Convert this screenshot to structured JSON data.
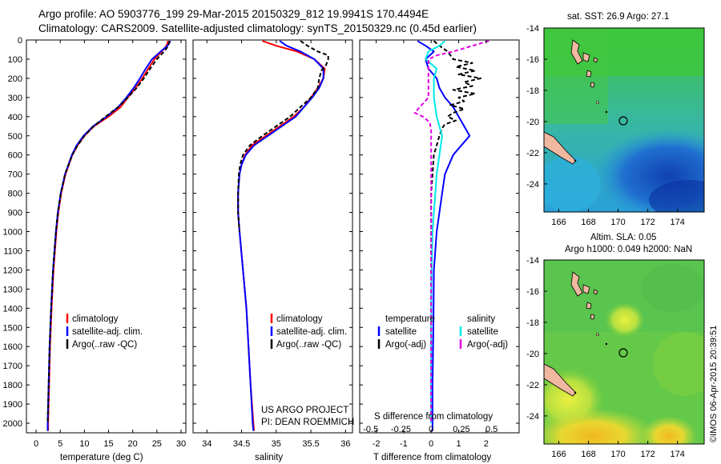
{
  "header": {
    "line1": "Argo profile: AO 5903776_199 29-Mar-2015 20150329_812 19.9941S 170.4494E",
    "line2": "Climatology: CARS2009. Satellite-adjusted climatology: synTS_20150329.nc (0.45d earlier)"
  },
  "depth_ticks": [
    "0",
    "100",
    "200",
    "300",
    "400",
    "500",
    "600",
    "700",
    "800",
    "900",
    "1000",
    "1100",
    "1200",
    "1300",
    "1400",
    "1500",
    "1600",
    "1700",
    "1800",
    "1900",
    "2000"
  ],
  "colors": {
    "climatology": "#ff0000",
    "satellite": "#0000ff",
    "argo": "#000000",
    "sat_salinity": "#00e8e8",
    "argo_salinity": "#e000e0"
  },
  "chart_data": [
    {
      "type": "line",
      "id": "temperature",
      "xlabel": "temperature (deg C)",
      "xlim": [
        -2,
        31
      ],
      "ylim": [
        0,
        2050
      ],
      "xticks": [
        "0",
        "5",
        "10",
        "15",
        "20",
        "25",
        "30"
      ],
      "xtick_values": [
        0,
        5,
        10,
        15,
        20,
        25,
        30
      ],
      "legend": [
        "climatology",
        "satellite-adj. clim.",
        "Argo(..raw -QC)"
      ],
      "series": [
        {
          "name": "climatology",
          "color": "#ff0000",
          "style": "solid",
          "depth": [
            5,
            30,
            60,
            100,
            150,
            200,
            250,
            300,
            350,
            400,
            450,
            500,
            550,
            600,
            650,
            700,
            800,
            900,
            1000,
            1200,
            1400,
            1600,
            1800,
            2000,
            2040
          ],
          "values": [
            27.3,
            27.0,
            26.0,
            24.5,
            23.2,
            22.0,
            20.6,
            19.0,
            17.5,
            15.0,
            12.0,
            10.0,
            8.6,
            7.5,
            6.8,
            6.1,
            5.2,
            4.6,
            4.2,
            3.6,
            3.2,
            2.9,
            2.7,
            2.5,
            2.5
          ]
        },
        {
          "name": "satellite-adj. clim.",
          "color": "#0000ff",
          "style": "solid",
          "depth": [
            5,
            30,
            60,
            100,
            150,
            200,
            250,
            300,
            350,
            400,
            450,
            500,
            550,
            600,
            650,
            700,
            800,
            900,
            1000,
            1200,
            1400,
            1600,
            1800,
            2000,
            2040
          ],
          "values": [
            27.8,
            27.2,
            25.8,
            24.0,
            22.7,
            21.5,
            20.2,
            18.7,
            17.0,
            14.6,
            11.8,
            9.8,
            8.4,
            7.4,
            6.7,
            6.0,
            5.1,
            4.5,
            4.1,
            3.5,
            3.1,
            2.8,
            2.6,
            2.4,
            2.4
          ]
        },
        {
          "name": "Argo(..raw -QC)",
          "color": "#000000",
          "style": "dashed",
          "depth": [
            5,
            30,
            60,
            100,
            150,
            200,
            250,
            300,
            350,
            400,
            450,
            500,
            550,
            600,
            650,
            700,
            800,
            900,
            1000,
            1200,
            1400,
            1600,
            1800,
            2000
          ],
          "values": [
            27.6,
            27.4,
            26.5,
            25.0,
            23.6,
            22.3,
            20.8,
            19.0,
            17.0,
            14.4,
            11.9,
            10.0,
            8.6,
            7.5,
            6.7,
            6.0,
            5.1,
            4.5,
            4.1,
            3.5,
            3.1,
            2.8,
            2.6,
            2.4
          ]
        }
      ]
    },
    {
      "type": "line",
      "id": "salinity",
      "xlabel": "salinity",
      "xlim": [
        33.8,
        36.1
      ],
      "ylim": [
        0,
        2050
      ],
      "xticks": [
        "34",
        "34.5",
        "35",
        "35.5",
        "36"
      ],
      "xtick_values": [
        34,
        34.5,
        35,
        35.5,
        36
      ],
      "legend": [
        "climatology",
        "satellite-adj. clim.",
        "Argo(..raw -QC)"
      ],
      "annotation": [
        "US ARGO PROJECT",
        "PI: DEAN ROEMMICH"
      ],
      "series": [
        {
          "name": "climatology",
          "color": "#ff0000",
          "style": "solid",
          "depth": [
            5,
            30,
            60,
            100,
            150,
            200,
            250,
            300,
            350,
            400,
            450,
            500,
            550,
            600,
            650,
            700,
            800,
            900,
            1000,
            1200,
            1400,
            1600,
            1800,
            2000,
            2040
          ],
          "values": [
            34.8,
            35.0,
            35.3,
            35.55,
            35.7,
            35.68,
            35.6,
            35.5,
            35.4,
            35.25,
            35.05,
            34.85,
            34.65,
            34.55,
            34.5,
            34.47,
            34.45,
            34.45,
            34.47,
            34.52,
            34.57,
            34.6,
            34.63,
            34.67,
            34.68
          ]
        },
        {
          "name": "satellite-adj. clim.",
          "color": "#0000ff",
          "style": "solid",
          "depth": [
            5,
            30,
            60,
            100,
            150,
            200,
            250,
            300,
            350,
            400,
            450,
            500,
            550,
            600,
            650,
            700,
            800,
            900,
            1000,
            1200,
            1400,
            1600,
            1800,
            2000,
            2040
          ],
          "values": [
            35.05,
            35.15,
            35.35,
            35.55,
            35.68,
            35.68,
            35.62,
            35.52,
            35.4,
            35.28,
            35.08,
            34.88,
            34.68,
            34.56,
            34.5,
            34.47,
            34.45,
            34.45,
            34.47,
            34.52,
            34.57,
            34.6,
            34.63,
            34.66,
            34.67
          ]
        },
        {
          "name": "Argo(..raw -QC)",
          "color": "#000000",
          "style": "dashed",
          "depth": [
            5,
            30,
            60,
            80,
            100,
            130,
            160,
            200,
            250,
            300,
            350,
            400,
            450,
            500,
            550,
            600,
            650,
            700,
            800,
            900,
            1000
          ],
          "values": [
            35.35,
            35.45,
            35.6,
            35.75,
            35.75,
            35.72,
            35.65,
            35.62,
            35.6,
            35.5,
            35.35,
            35.2,
            35.0,
            34.8,
            34.62,
            34.52,
            34.48,
            34.46,
            34.45,
            34.45,
            34.47
          ]
        }
      ]
    },
    {
      "type": "line",
      "id": "difference",
      "xlabel": "T difference from climatology",
      "xlabel_top": "S difference from climatology",
      "xlim": [
        -2.6,
        3.2
      ],
      "ylim": [
        0,
        2050
      ],
      "xticks": [
        "-2",
        "-1",
        "0",
        "1",
        "2"
      ],
      "xtick_values": [
        -2,
        -1,
        0,
        1,
        2
      ],
      "sticks": [
        "-0.5",
        "-0.25",
        "0",
        "0.25",
        "0.5"
      ],
      "legend_headings": [
        "temperature",
        "salinity"
      ],
      "legend": [
        "satellite",
        "Argo(-adj)",
        "satellite",
        "Argo(-adj)"
      ],
      "series": [
        {
          "name": "temperature satellite",
          "color": "#0000ff",
          "style": "solid",
          "depth": [
            5,
            30,
            60,
            100,
            150,
            200,
            250,
            300,
            350,
            400,
            450,
            500,
            550,
            600,
            700,
            800,
            900,
            1000,
            1200,
            1500,
            1800,
            2000,
            2040
          ],
          "values": [
            -0.5,
            -0.2,
            0.1,
            -0.2,
            -0.1,
            0.2,
            0.3,
            0.5,
            0.8,
            1.0,
            1.2,
            1.4,
            1.1,
            0.8,
            0.5,
            0.4,
            0.3,
            0.2,
            0.1,
            0.08,
            0.05,
            0.05,
            0.05
          ]
        },
        {
          "name": "temperature Argo(-adj)",
          "color": "#000000",
          "style": "dashed",
          "depth": [
            5,
            30,
            60,
            100,
            120,
            140,
            160,
            180,
            200,
            220,
            240,
            260,
            280,
            300,
            320,
            340,
            360,
            380,
            400,
            420,
            440,
            460,
            500,
            550,
            600,
            700,
            800,
            900,
            1000,
            1200,
            1500,
            1800,
            2000
          ],
          "values": [
            0.1,
            0.3,
            0.6,
            0.8,
            1.5,
            0.9,
            1.6,
            1.0,
            1.8,
            1.2,
            1.5,
            0.8,
            1.6,
            1.0,
            1.2,
            0.7,
            1.2,
            0.8,
            0.6,
            0.9,
            0.5,
            0.4,
            0.3,
            0.2,
            0.1,
            0.05,
            0.0,
            0.0,
            0.0,
            0.0,
            0.0,
            0.0,
            0.0
          ]
        },
        {
          "name": "salinity satellite",
          "color": "#00e8e8",
          "style": "solid",
          "depth": [
            5,
            30,
            60,
            100,
            150,
            200,
            300,
            400,
            500,
            600,
            700,
            800,
            900,
            1000,
            1200,
            1500,
            1800,
            2000
          ],
          "values": [
            0.5,
            0.3,
            -0.1,
            -0.2,
            0.2,
            0.1,
            0.1,
            0.2,
            0.4,
            0.3,
            0.2,
            0.15,
            0.1,
            0.05,
            0.02,
            0.0,
            0.0,
            0.0
          ]
        },
        {
          "name": "salinity Argo(-adj)",
          "color": "#e000e0",
          "style": "dashed",
          "depth": [
            5,
            30,
            60,
            80,
            100,
            150,
            200,
            300,
            380,
            400,
            430,
            470,
            500,
            600,
            700,
            800,
            1000,
            1500,
            2000
          ],
          "values": [
            2.1,
            1.5,
            0.8,
            0.2,
            -0.1,
            -0.1,
            -0.1,
            -0.1,
            -0.6,
            -0.3,
            -0.05,
            0.0,
            0.0,
            0.0,
            0.0,
            0.0,
            0.0,
            0.0,
            0.0
          ]
        }
      ]
    }
  ],
  "maps": [
    {
      "id": "sst",
      "title": "sat. SST: 26.9 Argo: 27.1",
      "yticks": [
        "-14",
        "-16",
        "-18",
        "-20",
        "-22",
        "-24"
      ],
      "xticks": [
        "166",
        "168",
        "170",
        "172",
        "174"
      ]
    },
    {
      "id": "sla",
      "title_line1": "Altim. SLA: 0.05",
      "title_line2": "Argo h1000: 0.049 h2000: NaN",
      "yticks": [
        "-14",
        "-16",
        "-18",
        "-20",
        "-22",
        "-24"
      ],
      "xticks": [
        "166",
        "168",
        "170",
        "172",
        "174"
      ]
    }
  ],
  "side_text": "©IMOS 06-Apr-2015 20:39:51"
}
